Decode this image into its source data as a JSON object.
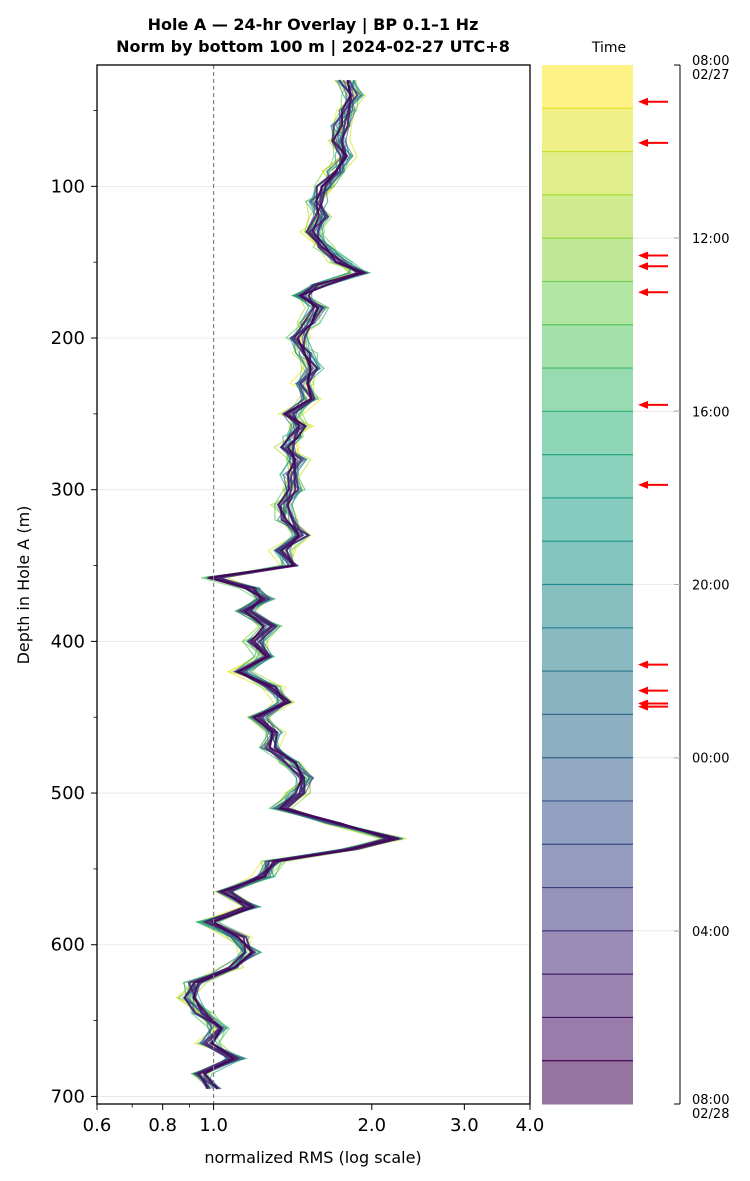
{
  "chart_data": {
    "type": "line",
    "title_line1": "Hole A — 24-hr Overlay  |  BP 0.1–1 Hz",
    "title_line2": "Norm by bottom 100 m  |  2024-02-27 UTC+8",
    "xlabel": "normalized RMS  (log scale)",
    "ylabel": "Depth in Hole A (m)",
    "x_scale": "log",
    "xlim": [
      0.6,
      4.0
    ],
    "ylim": [
      705,
      20
    ],
    "x_ticks": [
      0.6,
      0.8,
      1.0,
      2.0,
      3.0,
      4.0
    ],
    "x_tick_labels": [
      "0.6",
      "0.8",
      "1.0",
      "2.0",
      "3.0",
      "4.0"
    ],
    "y_ticks": [
      100,
      200,
      300,
      400,
      500,
      600,
      700
    ],
    "y_tick_labels": [
      "100",
      "200",
      "300",
      "400",
      "500",
      "600",
      "700"
    ],
    "reference_line_x": 1.0,
    "grid": "horizontal",
    "n_traces": 24,
    "colorscale": "viridis",
    "profile": {
      "depth": [
        30,
        40,
        50,
        60,
        70,
        80,
        90,
        100,
        110,
        120,
        130,
        140,
        150,
        157,
        165,
        172,
        180,
        190,
        200,
        210,
        220,
        230,
        240,
        250,
        258,
        265,
        272,
        280,
        290,
        300,
        310,
        320,
        330,
        340,
        350,
        358,
        365,
        372,
        380,
        390,
        400,
        410,
        420,
        430,
        440,
        450,
        460,
        470,
        480,
        490,
        500,
        510,
        520,
        530,
        537,
        545,
        555,
        565,
        575,
        585,
        595,
        605,
        615,
        625,
        635,
        645,
        655,
        665,
        675,
        685,
        695
      ],
      "rms": [
        1.78,
        1.85,
        1.8,
        1.75,
        1.72,
        1.78,
        1.7,
        1.62,
        1.58,
        1.6,
        1.55,
        1.62,
        1.75,
        1.9,
        1.6,
        1.48,
        1.58,
        1.52,
        1.45,
        1.5,
        1.55,
        1.48,
        1.52,
        1.4,
        1.46,
        1.42,
        1.38,
        1.45,
        1.4,
        1.42,
        1.36,
        1.38,
        1.48,
        1.35,
        1.4,
        1.0,
        1.18,
        1.25,
        1.15,
        1.28,
        1.2,
        1.26,
        1.13,
        1.3,
        1.38,
        1.22,
        1.32,
        1.28,
        1.4,
        1.5,
        1.45,
        1.35,
        1.7,
        2.2,
        1.82,
        1.3,
        1.25,
        1.05,
        1.18,
        0.98,
        1.12,
        1.18,
        1.08,
        0.92,
        0.9,
        0.95,
        1.02,
        0.98,
        1.1,
        0.95,
        1.0
      ]
    },
    "colorbar": {
      "label": "Time",
      "tick_labels": [
        "08:00\n02/27",
        "12:00",
        "16:00",
        "20:00",
        "00:00",
        "04:00",
        "08:00\n02/28"
      ],
      "tick_hours": [
        0,
        4,
        8,
        12,
        16,
        20,
        24
      ]
    },
    "arrows_hours": [
      0.85,
      1.8,
      4.4,
      4.65,
      5.25,
      7.85,
      9.7,
      13.85,
      14.45,
      14.75,
      14.82
    ],
    "colors": {
      "reference_line": "#808080",
      "arrow": "#ff0000",
      "grid": "#e6e6e6"
    }
  }
}
